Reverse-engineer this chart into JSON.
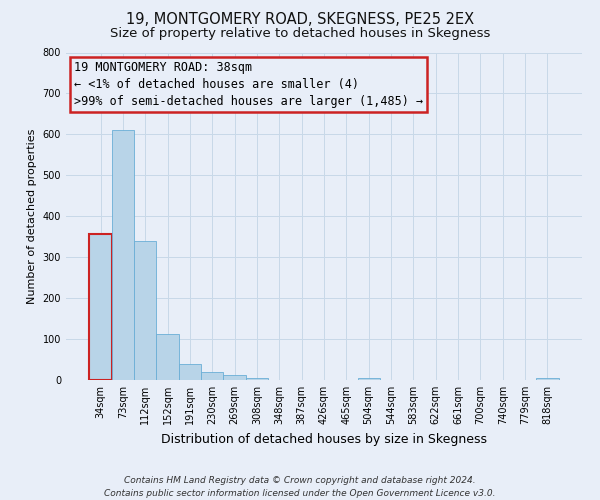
{
  "title": "19, MONTGOMERY ROAD, SKEGNESS, PE25 2EX",
  "subtitle": "Size of property relative to detached houses in Skegness",
  "xlabel": "Distribution of detached houses by size in Skegness",
  "ylabel": "Number of detached properties",
  "bar_labels": [
    "34sqm",
    "73sqm",
    "112sqm",
    "152sqm",
    "191sqm",
    "230sqm",
    "269sqm",
    "308sqm",
    "348sqm",
    "387sqm",
    "426sqm",
    "465sqm",
    "504sqm",
    "544sqm",
    "583sqm",
    "622sqm",
    "661sqm",
    "700sqm",
    "740sqm",
    "779sqm",
    "818sqm"
  ],
  "bar_values": [
    357,
    610,
    340,
    113,
    39,
    20,
    12,
    4,
    0,
    0,
    0,
    0,
    4,
    0,
    0,
    0,
    0,
    0,
    0,
    0,
    4
  ],
  "bar_color": "#b8d4e8",
  "bar_edge_color": "#6aaed6",
  "highlight_edge_color": "#cc2222",
  "ylim": [
    0,
    800
  ],
  "yticks": [
    0,
    100,
    200,
    300,
    400,
    500,
    600,
    700,
    800
  ],
  "grid_color": "#c8d8e8",
  "bg_color": "#e8eef8",
  "annotation_text_line1": "19 MONTGOMERY ROAD: 38sqm",
  "annotation_text_line2": "← <1% of detached houses are smaller (4)",
  "annotation_text_line3": ">99% of semi-detached houses are larger (1,485) →",
  "footer_text": "Contains HM Land Registry data © Crown copyright and database right 2024.\nContains public sector information licensed under the Open Government Licence v3.0.",
  "title_fontsize": 10.5,
  "subtitle_fontsize": 9.5,
  "ylabel_fontsize": 8,
  "xlabel_fontsize": 9,
  "tick_fontsize": 7,
  "ann_fontsize": 8.5,
  "footer_fontsize": 6.5
}
